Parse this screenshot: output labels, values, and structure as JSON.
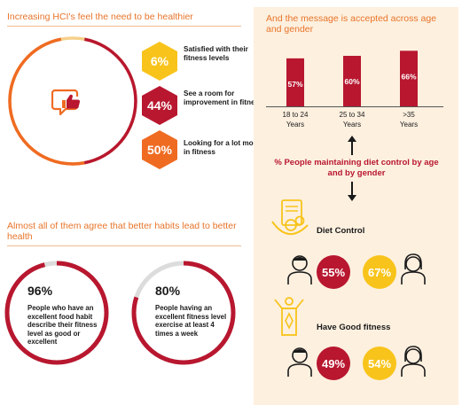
{
  "top_left": {
    "title": "Increasing HCI's feel the need to be healthier",
    "stats": [
      {
        "value": "6%",
        "text": "Satisfied with their fitness levels",
        "color": "#f8c41b"
      },
      {
        "value": "44%",
        "text": "See a room for improvement in fitness",
        "color": "#b8172f"
      },
      {
        "value": "50%",
        "text": "Looking for a lot more in fitness",
        "color": "#ef6b22"
      }
    ]
  },
  "bottom_left": {
    "title": "Almost all of them agree that better habits lead to better health",
    "cards": [
      {
        "value": "96%",
        "text": "People who have an excellent food habit describe their fitness level as good or excellent",
        "fill": 0.96
      },
      {
        "value": "80%",
        "text": "People having an excellent fitness level exercise at least 4 times a week",
        "fill": 0.8
      }
    ]
  },
  "right": {
    "title": "And the message is accepted across age and gender",
    "diet_title": "% People maintaining diet control by age and by gender",
    "diet_control_label": "Diet Control",
    "fitness_label": "Have Good fitness",
    "diet_male": "55%",
    "diet_female": "67%",
    "fitness_male": "49%",
    "fitness_female": "54%"
  },
  "chart_data": {
    "type": "bar",
    "categories": [
      "18 to 24 Years",
      "25 to 34 Years",
      ">35 Years"
    ],
    "values": [
      57,
      60,
      66
    ],
    "value_labels": [
      "57%",
      "60%",
      "66%"
    ],
    "category_lines": [
      [
        "18 to 24",
        "Years"
      ],
      [
        "25 to 34",
        "Years"
      ],
      [
        ">35",
        "Years"
      ]
    ],
    "title": "",
    "xlabel": "",
    "ylabel": ""
  },
  "colors": {
    "orange": "#ef6b22",
    "red": "#b8172f",
    "yellow": "#f8c41b",
    "panel": "#fdf0df"
  }
}
